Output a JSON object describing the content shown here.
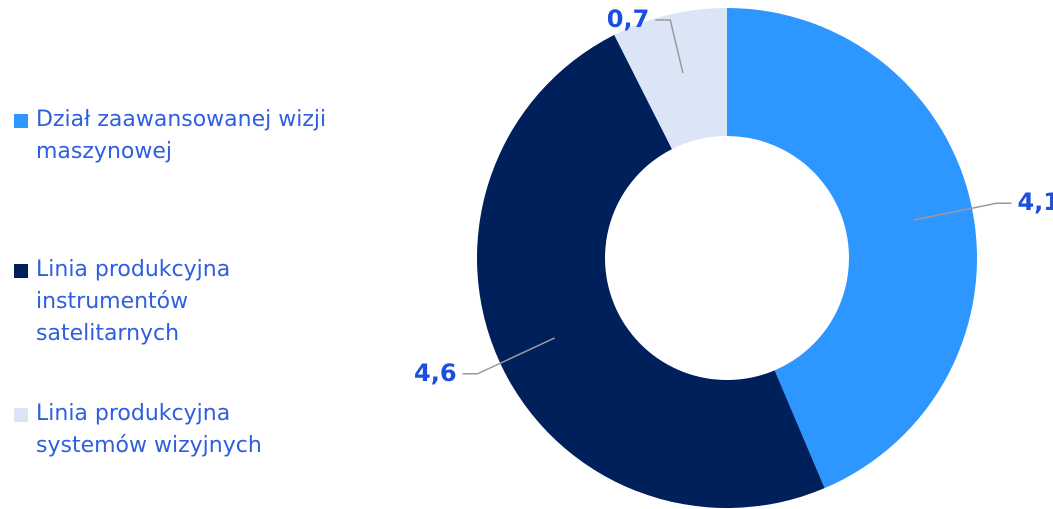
{
  "chart_data": {
    "type": "donut",
    "categories": [
      "Dział zaawansowanej wizji maszynowej",
      "Linia produkcyjna instrumentów satelitarnych",
      "Linia produkcyjna systemów wizyjnych"
    ],
    "values": [
      4.1,
      4.6,
      0.7
    ],
    "value_labels": [
      "4,1",
      "4,6",
      "0,7"
    ],
    "colors": [
      "#2e96ff",
      "#00205b",
      "#dce5f5"
    ]
  }
}
